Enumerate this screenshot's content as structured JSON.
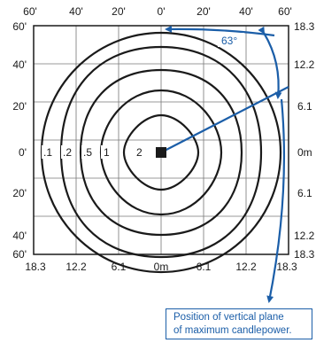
{
  "top_axis": [
    "60'",
    "40'",
    "20'",
    "0'",
    "20'",
    "40'",
    "60'"
  ],
  "left_axis": [
    "60'",
    "40'",
    "20'",
    "0'",
    "20'",
    "40'",
    "60'"
  ],
  "right_axis": [
    "18.3",
    "12.2",
    "6.1",
    "0m",
    "6.1",
    "12.2",
    "18.3"
  ],
  "bottom_axis": [
    "18.3",
    "12.2",
    "6.1",
    "0m",
    "6.1",
    "12.2",
    "18.3"
  ],
  "contour_labels": [
    ".1",
    ".2",
    ".5",
    "1",
    "2"
  ],
  "angle_label": "63°",
  "note": {
    "line1": "Position of vertical plane",
    "line2": "of maximum candlepower."
  },
  "colors": {
    "accent": "#1b5ea8",
    "ink": "#1a1a1a",
    "grid": "#777777"
  }
}
